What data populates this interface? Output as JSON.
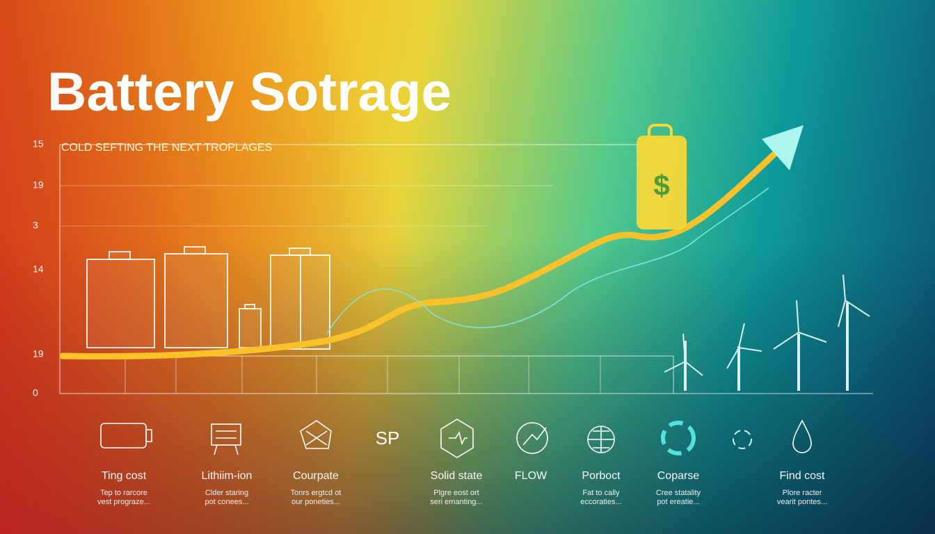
{
  "header": {
    "title": "Battery Sotrage",
    "subtitle": "COLD SEFTING THE NEXT TROPLAGES"
  },
  "axis_labels": [
    "15",
    "19",
    "3",
    "14",
    "19",
    "0"
  ],
  "tag_symbol": "$",
  "icon_text": "SP",
  "items": [
    {
      "label": "Ting cost",
      "caption": [
        "Tep to rarcore",
        "vest prograze..."
      ]
    },
    {
      "label": "Lithiim-ion",
      "caption": [
        "Clder staring",
        "pot conees..."
      ]
    },
    {
      "label": "Courpate",
      "caption": [
        "Tonrs ergtcd ot",
        "our poneties..."
      ]
    },
    {
      "label": "Solid state",
      "caption": [
        "Plgre eost ort",
        "seri emanting..."
      ]
    },
    {
      "label": "FLOW"
    },
    {
      "label": "Porboct",
      "caption": [
        "Fat to cally",
        "eccoraties..."
      ]
    },
    {
      "label": "Coparse",
      "caption": [
        "Cree statality",
        "pot ereatie..."
      ]
    },
    {
      "label": "Find cost",
      "caption": [
        "Plore racter",
        "vearit pontes..."
      ]
    }
  ]
}
